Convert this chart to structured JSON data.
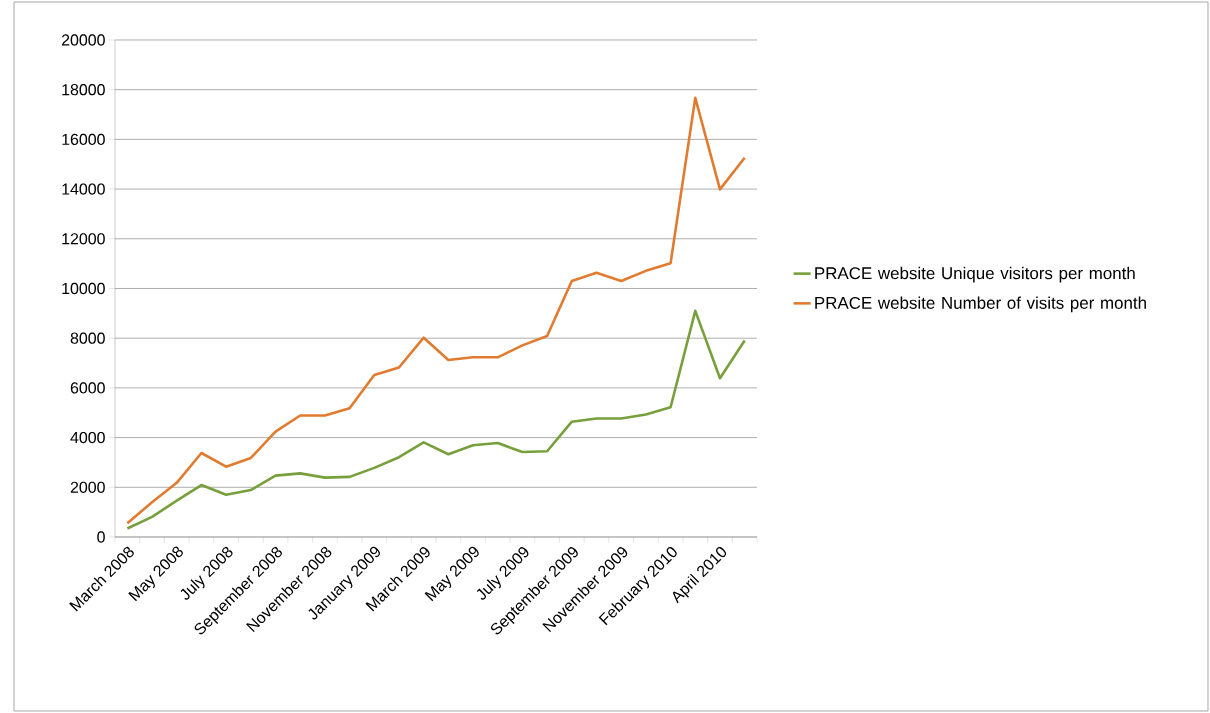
{
  "chart_data": {
    "type": "line",
    "categories": [
      "March 2008",
      null,
      "May 2008",
      null,
      "July 2008",
      null,
      "September 2008",
      null,
      "November 2008",
      null,
      "January 2009",
      null,
      "March 2009",
      null,
      "May 2009",
      null,
      "July 2009",
      null,
      "September 2009",
      null,
      "November 2009",
      null,
      "February 2010",
      null,
      "April 2010",
      null
    ],
    "series": [
      {
        "name": "PRACE website Unique visitors per month",
        "color": "#77a03c",
        "values": [
          340,
          810,
          1460,
          2090,
          1700,
          1890,
          2470,
          2560,
          2390,
          2420,
          2780,
          3210,
          3810,
          3330,
          3690,
          3780,
          3420,
          3450,
          4640,
          4770,
          4770,
          4930,
          5220,
          9100,
          6390,
          7910
        ]
      },
      {
        "name": "PRACE website Number of visits per month",
        "color": "#e07b2f",
        "values": [
          550,
          1400,
          2180,
          3380,
          2830,
          3180,
          4240,
          4890,
          4890,
          5180,
          6520,
          6820,
          8020,
          7120,
          7230,
          7230,
          7710,
          8090,
          10300,
          10630,
          10300,
          10710,
          11020,
          17670,
          13990,
          15260
        ]
      }
    ],
    "ylim": [
      0,
      20000
    ],
    "yticks": [
      0,
      2000,
      4000,
      6000,
      8000,
      10000,
      12000,
      14000,
      16000,
      18000,
      20000
    ],
    "grid": "y",
    "legend": "right",
    "marker": "none",
    "line_style": "solid"
  }
}
